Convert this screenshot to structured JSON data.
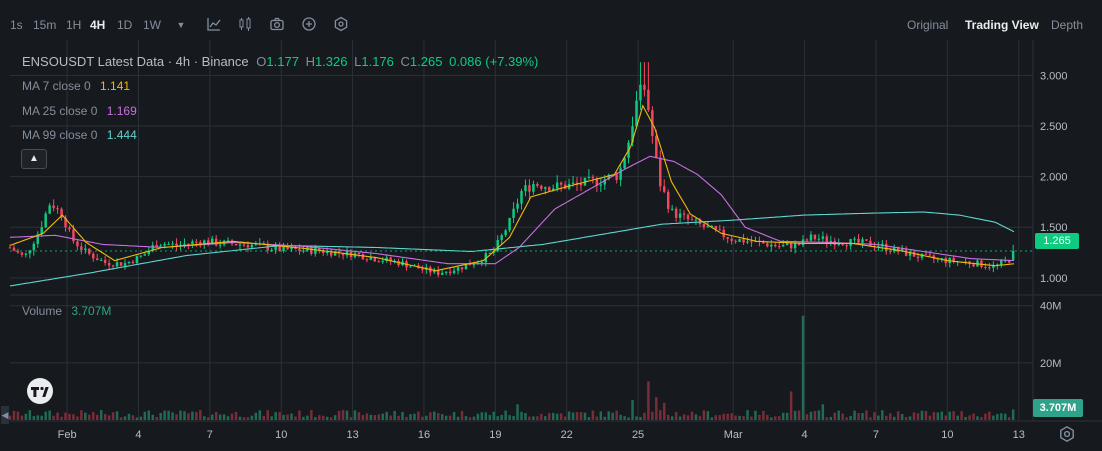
{
  "toolbar": {
    "timeframes": [
      "1s",
      "15m",
      "1H",
      "4H",
      "1D",
      "1W"
    ],
    "active_timeframe": "4H",
    "views": [
      "Original",
      "Trading View",
      "Depth"
    ],
    "active_view": "Trading View"
  },
  "legend": {
    "symbol_line": "ENSOUSDT Latest Data · 4h · Binance",
    "open_label": "O",
    "open": "1.177",
    "high_label": "H",
    "high": "1.326",
    "low_label": "L",
    "low": "1.176",
    "close_label": "C",
    "close": "1.265",
    "change": "0.086 (+7.39%)",
    "ma7_label": "MA 7 close 0",
    "ma7_value": "1.141",
    "ma25_label": "MA 25 close 0",
    "ma25_value": "1.169",
    "ma99_label": "MA 99 close 0",
    "ma99_value": "1.444",
    "volume_label": "Volume",
    "volume_value": "3.707M"
  },
  "colors": {
    "up": "#0ecb81",
    "down": "#f6465d",
    "ma7": "#f0b90b",
    "ma25": "#c86ee0",
    "ma99": "#5fd4d0",
    "background": "#161a1e",
    "grid": "#2b3139"
  },
  "icons": [
    "chevron-down-icon",
    "indicator-icon",
    "chart-type-icon",
    "camera-icon",
    "add-icon",
    "settings-icon",
    "collapse-up-icon",
    "tradingview-logo",
    "gear-icon"
  ],
  "chart_data": {
    "type": "candlestick",
    "price_axis": {
      "ticks": [
        "1.000",
        "1.500",
        "2.000",
        "2.500",
        "3.000"
      ],
      "range": [
        0.88,
        3.25
      ]
    },
    "volume_axis": {
      "ticks": [
        "20M",
        "40M"
      ],
      "range": [
        0,
        42
      ]
    },
    "x_ticks": [
      {
        "label": "Feb",
        "day": 1
      },
      {
        "label": "4",
        "day": 4
      },
      {
        "label": "7",
        "day": 7
      },
      {
        "label": "10",
        "day": 10
      },
      {
        "label": "13",
        "day": 13
      },
      {
        "label": "16",
        "day": 16
      },
      {
        "label": "19",
        "day": 19
      },
      {
        "label": "22",
        "day": 22
      },
      {
        "label": "25",
        "day": 25
      },
      {
        "label": "Mar",
        "day": 29
      },
      {
        "label": "4",
        "day": 32
      },
      {
        "label": "7",
        "day": 35
      },
      {
        "label": "10",
        "day": 38
      },
      {
        "label": "13",
        "day": 41
      }
    ],
    "x_range_days": [
      -1.4,
      41.6
    ],
    "last_price_label": "1.265",
    "last_volume_label": "3.707M",
    "price_keyframes": [
      [
        -1.4,
        1.3
      ],
      [
        -0.8,
        1.2
      ],
      [
        -0.2,
        1.45
      ],
      [
        0.3,
        1.75
      ],
      [
        0.8,
        1.62
      ],
      [
        1.2,
        1.38
      ],
      [
        1.8,
        1.25
      ],
      [
        2.6,
        1.15
      ],
      [
        3.4,
        1.14
      ],
      [
        4.2,
        1.22
      ],
      [
        4.8,
        1.35
      ],
      [
        5.6,
        1.32
      ],
      [
        6.6,
        1.36
      ],
      [
        7.6,
        1.34
      ],
      [
        8.6,
        1.33
      ],
      [
        10,
        1.28
      ],
      [
        11.5,
        1.27
      ],
      [
        13,
        1.24
      ],
      [
        14,
        1.19
      ],
      [
        15,
        1.15
      ],
      [
        16,
        1.08
      ],
      [
        16.6,
        1.05
      ],
      [
        17.5,
        1.1
      ],
      [
        18.3,
        1.17
      ],
      [
        18.9,
        1.25
      ],
      [
        19.6,
        1.55
      ],
      [
        20.1,
        1.85
      ],
      [
        20.6,
        1.93
      ],
      [
        21.5,
        1.9
      ],
      [
        22.5,
        1.92
      ],
      [
        23.5,
        1.97
      ],
      [
        24.2,
        2.02
      ],
      [
        24.6,
        2.35
      ],
      [
        25.0,
        2.8
      ],
      [
        25.3,
        2.88
      ],
      [
        25.6,
        2.4
      ],
      [
        25.9,
        1.95
      ],
      [
        26.4,
        1.65
      ],
      [
        27.2,
        1.56
      ],
      [
        28.0,
        1.48
      ],
      [
        29.0,
        1.38
      ],
      [
        30.0,
        1.35
      ],
      [
        31.0,
        1.31
      ],
      [
        31.8,
        1.33
      ],
      [
        32.3,
        1.4
      ],
      [
        33.0,
        1.37
      ],
      [
        34.0,
        1.35
      ],
      [
        35.0,
        1.33
      ],
      [
        36.0,
        1.26
      ],
      [
        37.0,
        1.2
      ],
      [
        38.0,
        1.17
      ],
      [
        39.0,
        1.15
      ],
      [
        40.0,
        1.11
      ],
      [
        40.6,
        1.18
      ],
      [
        40.9,
        1.265
      ]
    ],
    "ma7_keyframes": [
      [
        -1.4,
        1.32
      ],
      [
        0.0,
        1.44
      ],
      [
        0.8,
        1.62
      ],
      [
        1.8,
        1.35
      ],
      [
        3.0,
        1.17
      ],
      [
        5.0,
        1.3
      ],
      [
        8.0,
        1.36
      ],
      [
        11.0,
        1.29
      ],
      [
        14.0,
        1.2
      ],
      [
        16.5,
        1.07
      ],
      [
        18.5,
        1.17
      ],
      [
        19.6,
        1.4
      ],
      [
        20.5,
        1.8
      ],
      [
        22.0,
        1.9
      ],
      [
        24.0,
        2.02
      ],
      [
        24.7,
        2.3
      ],
      [
        25.2,
        2.7
      ],
      [
        25.7,
        2.48
      ],
      [
        26.4,
        1.95
      ],
      [
        27.2,
        1.63
      ],
      [
        28.5,
        1.44
      ],
      [
        30.0,
        1.36
      ],
      [
        32.0,
        1.34
      ],
      [
        34.0,
        1.34
      ],
      [
        36.0,
        1.27
      ],
      [
        38.0,
        1.17
      ],
      [
        40.0,
        1.12
      ],
      [
        40.9,
        1.141
      ]
    ],
    "ma25_keyframes": [
      [
        -1.4,
        1.4
      ],
      [
        0.5,
        1.42
      ],
      [
        2.5,
        1.33
      ],
      [
        5.0,
        1.3
      ],
      [
        8.0,
        1.35
      ],
      [
        11.0,
        1.31
      ],
      [
        14.0,
        1.24
      ],
      [
        17.0,
        1.14
      ],
      [
        19.0,
        1.14
      ],
      [
        20.0,
        1.3
      ],
      [
        21.5,
        1.68
      ],
      [
        23.0,
        1.88
      ],
      [
        24.5,
        2.08
      ],
      [
        25.5,
        2.2
      ],
      [
        26.5,
        2.15
      ],
      [
        27.5,
        2.02
      ],
      [
        28.5,
        1.82
      ],
      [
        29.5,
        1.5
      ],
      [
        31.0,
        1.36
      ],
      [
        33.0,
        1.35
      ],
      [
        35.0,
        1.33
      ],
      [
        37.0,
        1.26
      ],
      [
        39.0,
        1.19
      ],
      [
        40.9,
        1.169
      ]
    ],
    "ma99_keyframes": [
      [
        -1.4,
        0.92
      ],
      [
        2.0,
        1.05
      ],
      [
        6.0,
        1.22
      ],
      [
        10.0,
        1.32
      ],
      [
        14.0,
        1.3
      ],
      [
        18.0,
        1.26
      ],
      [
        21.0,
        1.33
      ],
      [
        24.0,
        1.45
      ],
      [
        26.0,
        1.53
      ],
      [
        29.0,
        1.57
      ],
      [
        32.0,
        1.62
      ],
      [
        35.0,
        1.64
      ],
      [
        37.0,
        1.65
      ],
      [
        38.5,
        1.62
      ],
      [
        40.0,
        1.55
      ],
      [
        40.9,
        1.444
      ]
    ],
    "volume_spikes": [
      [
        20.0,
        5.5
      ],
      [
        24.8,
        7.0
      ],
      [
        25.4,
        13.5
      ],
      [
        25.7,
        8.0
      ],
      [
        26.1,
        6.0
      ],
      [
        31.5,
        10.0
      ],
      [
        31.95,
        36.5
      ],
      [
        32.7,
        5.5
      ],
      [
        40.9,
        3.707
      ]
    ],
    "volume_base_millions": 2.2
  }
}
